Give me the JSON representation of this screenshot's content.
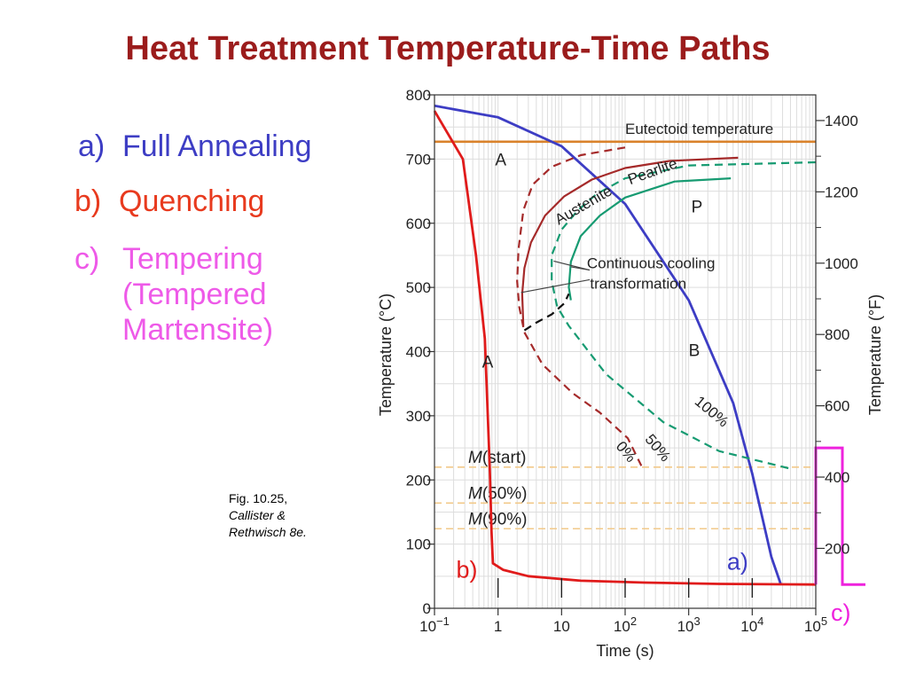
{
  "title": "Heat Treatment Temperature-Time Paths",
  "items": [
    {
      "letter": "a)",
      "text": "Full Annealing",
      "color": "#3d3dc4"
    },
    {
      "letter": "b)",
      "text": "Quenching",
      "color": "#e83a1e"
    },
    {
      "letter": "c)",
      "text_lines": [
        "Tempering",
        "(Tempered",
        "Martensite)"
      ],
      "color": "#ee5ae8"
    }
  ],
  "figure_caption": {
    "line1": "Fig. 10.25,",
    "line2": "Callister &",
    "line3": "Rethwisch 8e."
  },
  "chart_data": {
    "type": "line",
    "xlabel": "Time (s)",
    "ylabel": "Temperature (°C)",
    "ylabel_right": "Temperature (°F)",
    "x_scale": "log",
    "xlim": [
      0.1,
      100000
    ],
    "ylim": [
      0,
      800
    ],
    "x_ticks": [
      {
        "v": 0.1,
        "base": "10",
        "exp": "−1"
      },
      {
        "v": 1,
        "base": "1",
        "exp": ""
      },
      {
        "v": 10,
        "base": "10",
        "exp": ""
      },
      {
        "v": 100,
        "base": "10",
        "exp": "2"
      },
      {
        "v": 1000,
        "base": "10",
        "exp": "3"
      },
      {
        "v": 10000,
        "base": "10",
        "exp": "4"
      },
      {
        "v": 100000,
        "base": "10",
        "exp": "5"
      }
    ],
    "y_ticks": [
      0,
      100,
      200,
      300,
      400,
      500,
      600,
      700,
      800
    ],
    "y_ticks_right": [
      200,
      400,
      600,
      800,
      1000,
      1200,
      1400
    ],
    "colors": {
      "eutectoid": "#d9822b",
      "annealing": "#3d3dc4",
      "quench": "#e01b1b",
      "tempering": "#ee22dd",
      "ctt_red": "#a52a2a",
      "ctt_green": "#179b72",
      "martensite": "#f2c98a",
      "black_dash": "#111111",
      "grid": "#dddddd"
    },
    "eutectoid": {
      "label": "Eutectoid temperature",
      "temp": 727
    },
    "martensite_lines": [
      {
        "prefix": "M",
        "suffix": "(start)",
        "temp": 220
      },
      {
        "prefix": "M",
        "suffix": "(50%)",
        "temp": 164
      },
      {
        "prefix": "M",
        "suffix": "(90%)",
        "temp": 124
      }
    ],
    "series": [
      {
        "key": "annealing",
        "style": "solid",
        "points": [
          [
            0.1,
            783
          ],
          [
            1,
            765
          ],
          [
            10,
            720
          ],
          [
            100,
            630
          ],
          [
            1000,
            480
          ],
          [
            5000,
            320
          ],
          [
            10000,
            210
          ],
          [
            20000,
            80
          ],
          [
            28000,
            38
          ]
        ]
      },
      {
        "key": "quench",
        "style": "solid",
        "points": [
          [
            0.1,
            775
          ],
          [
            0.28,
            700
          ],
          [
            0.45,
            550
          ],
          [
            0.62,
            420
          ],
          [
            0.74,
            220
          ],
          [
            0.79,
            120
          ],
          [
            0.83,
            70
          ],
          [
            1.2,
            60
          ],
          [
            3,
            50
          ],
          [
            20,
            43
          ],
          [
            200,
            40
          ],
          [
            3000,
            38
          ],
          [
            100000,
            37
          ]
        ]
      },
      {
        "key": "ctt_red",
        "style": "dashed",
        "points": [
          [
            100,
            718
          ],
          [
            20,
            706
          ],
          [
            7,
            688
          ],
          [
            3.5,
            660
          ],
          [
            2.5,
            620
          ],
          [
            2.1,
            560
          ],
          [
            2,
            510
          ],
          [
            2.15,
            470
          ],
          [
            2.6,
            430
          ],
          [
            5,
            380
          ],
          [
            15,
            335
          ],
          [
            40,
            305
          ],
          [
            110,
            265
          ],
          [
            180,
            222
          ]
        ]
      },
      {
        "key": "ctt_red",
        "style": "solid",
        "points": [
          [
            6000,
            702
          ],
          [
            500,
            697
          ],
          [
            100,
            686
          ],
          [
            30,
            668
          ],
          [
            11,
            642
          ],
          [
            5.5,
            612
          ],
          [
            3.3,
            570
          ],
          [
            2.6,
            530
          ],
          [
            2.4,
            490
          ],
          [
            2.5,
            440
          ]
        ]
      },
      {
        "key": "ctt_green",
        "style": "dashed",
        "points": [
          [
            100000,
            695
          ],
          [
            1000,
            690
          ],
          [
            100,
            670
          ],
          [
            35,
            645
          ],
          [
            18,
            620
          ],
          [
            10,
            590
          ],
          [
            7,
            550
          ],
          [
            7,
            510
          ],
          [
            8.5,
            470
          ],
          [
            13,
            440
          ],
          [
            50,
            365
          ],
          [
            400,
            290
          ],
          [
            3000,
            245
          ],
          [
            38000,
            218
          ]
        ]
      },
      {
        "key": "ctt_green",
        "style": "solid",
        "points": [
          [
            4600,
            670
          ],
          [
            600,
            665
          ],
          [
            100,
            640
          ],
          [
            40,
            612
          ],
          [
            20,
            580
          ],
          [
            14,
            540
          ],
          [
            13,
            500
          ],
          [
            14,
            480
          ]
        ]
      },
      {
        "key": "black_dash",
        "style": "dashed",
        "points": [
          [
            2.6,
            433
          ],
          [
            4,
            445
          ],
          [
            7,
            458
          ],
          [
            11,
            475
          ],
          [
            13,
            490
          ]
        ]
      }
    ],
    "annotations": [
      {
        "text": "A",
        "x": 0.9,
        "y": 690
      },
      {
        "text": "P",
        "x": 1100,
        "y": 617
      },
      {
        "text": "B",
        "x": 1000,
        "y": 393
      },
      {
        "text": "A",
        "x": 0.56,
        "y": 375
      },
      {
        "text": "Austenite",
        "x": 9,
        "y": 597,
        "rot": -30
      },
      {
        "text": "Pearlite",
        "x": 120,
        "y": 660,
        "rot": -20
      },
      {
        "text": "Continuous cooling",
        "x": 25,
        "y": 530
      },
      {
        "text": "transformation",
        "x": 28,
        "y": 498
      },
      {
        "text": "100%",
        "x": 1200,
        "y": 320,
        "rot": 40
      },
      {
        "text": "50%",
        "x": 200,
        "y": 263,
        "rot": 50
      },
      {
        "text": "0%",
        "x": 70,
        "y": 252,
        "rot": 50
      },
      {
        "text": "a)",
        "x": 4000,
        "y": 60,
        "color": "#3d3dc4"
      },
      {
        "text": "b)",
        "x": 0.22,
        "y": 48,
        "color": "#e01b1b"
      }
    ],
    "tempering_label": "c)"
  }
}
